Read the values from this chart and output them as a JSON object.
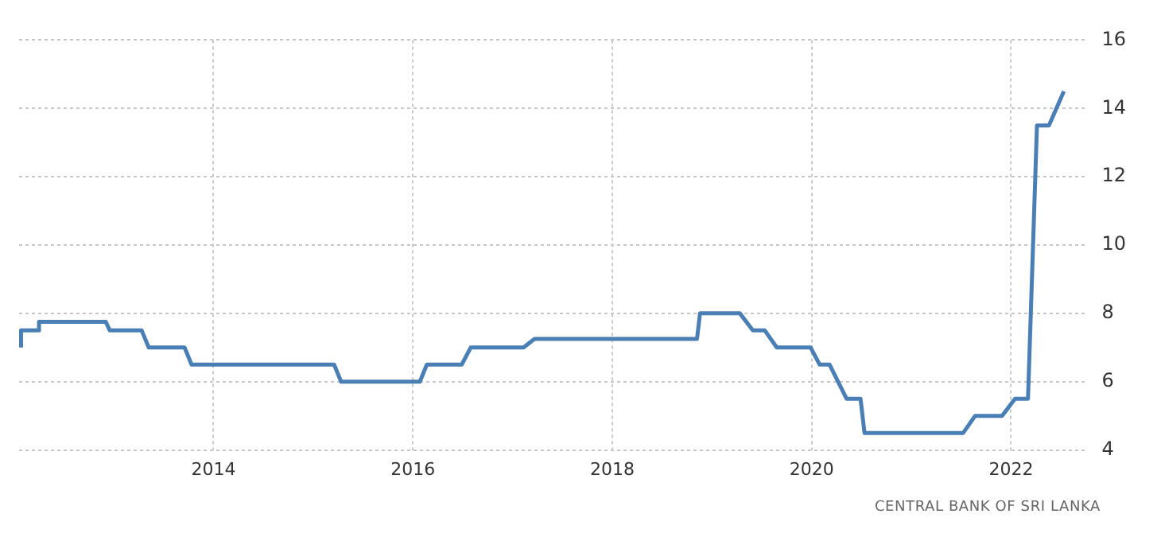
{
  "chart_data": {
    "type": "step",
    "x": [
      2012.07,
      2012.07,
      2012.25,
      2012.25,
      2012.92,
      2012.96,
      2013.28,
      2013.35,
      2013.71,
      2013.78,
      2015.21,
      2015.28,
      2016.07,
      2016.14,
      2016.49,
      2016.58,
      2017.11,
      2017.22,
      2018.85,
      2018.88,
      2019.28,
      2019.41,
      2019.53,
      2019.65,
      2019.99,
      2020.08,
      2020.18,
      2020.35,
      2020.49,
      2020.53,
      2021.52,
      2021.64,
      2021.91,
      2022.04,
      2022.17,
      2022.26,
      2022.38,
      2022.53
    ],
    "series": [
      {
        "color": "#4a7fb5",
        "values": [
          7.0,
          7.5,
          7.5,
          7.75,
          7.75,
          7.5,
          7.5,
          7.0,
          7.0,
          6.5,
          6.5,
          6.0,
          6.0,
          6.5,
          6.5,
          7.0,
          7.0,
          7.25,
          7.25,
          8.0,
          8.0,
          7.5,
          7.5,
          7.0,
          7.0,
          6.5,
          6.5,
          5.5,
          5.5,
          4.5,
          4.5,
          5.0,
          5.0,
          5.5,
          5.5,
          13.5,
          13.5,
          14.5
        ]
      }
    ],
    "xlim": [
      2012.05,
      2022.75
    ],
    "xticks": [
      2014,
      2016,
      2018,
      2020,
      2022
    ],
    "ylim": [
      4,
      16
    ],
    "yticks": [
      4,
      6,
      8,
      10,
      12,
      14,
      16
    ],
    "grid": true,
    "legend": false,
    "marker": "none",
    "line_style": "solid",
    "annotations": [
      "CENTRAL BANK OF SRI LANKA"
    ]
  }
}
